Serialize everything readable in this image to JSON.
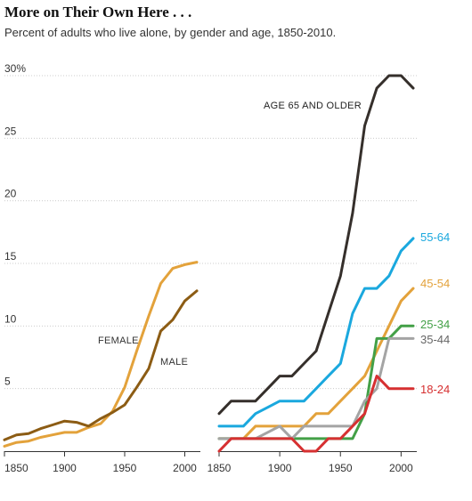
{
  "title": "More on Their Own Here . . .",
  "subtitle": "Percent of adults who live alone, by gender and age, 1850-2010.",
  "colors": {
    "female": "#e3a23b",
    "male": "#8c5c14",
    "age_65_plus": "#352f2b",
    "age_55_64": "#1aa8de",
    "age_45_54": "#e3a23b",
    "age_25_34": "#43a047",
    "age_35_44": "#a4a4a4",
    "age_18_24": "#d63031",
    "grid": "#cccccc",
    "axis": "#333333"
  },
  "chart_data": [
    {
      "type": "line",
      "xlim": [
        1850,
        2010
      ],
      "ylim": [
        0,
        30
      ],
      "x_ticks": [
        "1850",
        "1900",
        "1950",
        "2000"
      ],
      "y_ticks": [
        "5",
        "10",
        "15",
        "20",
        "25",
        "30%"
      ],
      "grid": true,
      "series": [
        {
          "name": "FEMALE",
          "x": [
            1850,
            1860,
            1870,
            1880,
            1890,
            1900,
            1910,
            1920,
            1930,
            1940,
            1950,
            1960,
            1970,
            1980,
            1990,
            2000,
            2010
          ],
          "values": [
            0.4,
            0.7,
            0.8,
            1.1,
            1.3,
            1.5,
            1.5,
            1.9,
            2.2,
            3.2,
            5.1,
            8.0,
            10.8,
            13.4,
            14.6,
            14.9,
            15.1
          ]
        },
        {
          "name": "MALE",
          "x": [
            1850,
            1860,
            1870,
            1880,
            1890,
            1900,
            1910,
            1920,
            1930,
            1940,
            1950,
            1960,
            1970,
            1980,
            1990,
            2000,
            2010
          ],
          "values": [
            0.9,
            1.3,
            1.4,
            1.8,
            2.1,
            2.4,
            2.3,
            2.0,
            2.6,
            3.1,
            3.7,
            5.1,
            6.6,
            9.6,
            10.5,
            12.0,
            12.8
          ]
        }
      ]
    },
    {
      "type": "line",
      "xlim": [
        1850,
        2010
      ],
      "ylim": [
        0,
        30
      ],
      "x_ticks": [
        "1850",
        "1900",
        "1950",
        "2000"
      ],
      "grid": true,
      "series": [
        {
          "name": "AGE 65 AND OLDER",
          "x": [
            1850,
            1860,
            1870,
            1880,
            1890,
            1900,
            1910,
            1920,
            1930,
            1940,
            1950,
            1960,
            1970,
            1980,
            1990,
            2000,
            2010
          ],
          "values": [
            3.0,
            4.0,
            4.0,
            4.0,
            5.0,
            6.0,
            6.0,
            7.0,
            8.0,
            11.0,
            14.0,
            19.0,
            26.0,
            29.0,
            30.0,
            30.0,
            29.0
          ]
        },
        {
          "name": "55-64",
          "x": [
            1850,
            1860,
            1870,
            1880,
            1890,
            1900,
            1910,
            1920,
            1930,
            1940,
            1950,
            1960,
            1970,
            1980,
            1990,
            2000,
            2010
          ],
          "values": [
            2.0,
            2.0,
            2.0,
            3.0,
            3.5,
            4.0,
            4.0,
            4.0,
            5.0,
            6.0,
            7.0,
            11.0,
            13.0,
            13.0,
            14.0,
            16.0,
            17.0
          ]
        },
        {
          "name": "45-54",
          "x": [
            1850,
            1860,
            1870,
            1880,
            1890,
            1900,
            1910,
            1920,
            1930,
            1940,
            1950,
            1960,
            1970,
            1980,
            1990,
            2000,
            2010
          ],
          "values": [
            1.0,
            1.0,
            1.0,
            2.0,
            2.0,
            2.0,
            2.0,
            2.0,
            3.0,
            3.0,
            4.0,
            5.0,
            6.0,
            8.0,
            10.0,
            12.0,
            13.0
          ]
        },
        {
          "name": "25-34",
          "x": [
            1850,
            1860,
            1870,
            1880,
            1890,
            1900,
            1910,
            1920,
            1930,
            1940,
            1950,
            1960,
            1970,
            1980,
            1990,
            2000,
            2010
          ],
          "values": [
            1.0,
            1.0,
            1.0,
            1.0,
            1.0,
            1.0,
            1.0,
            1.0,
            1.0,
            1.0,
            1.0,
            1.0,
            3.0,
            9.0,
            9.0,
            10.0,
            10.0
          ]
        },
        {
          "name": "35-44",
          "x": [
            1850,
            1860,
            1870,
            1880,
            1890,
            1900,
            1910,
            1920,
            1930,
            1940,
            1950,
            1960,
            1970,
            1980,
            1990,
            2000,
            2010
          ],
          "values": [
            1.0,
            1.0,
            1.0,
            1.0,
            1.5,
            2.0,
            1.0,
            2.0,
            2.0,
            2.0,
            2.0,
            2.0,
            4.0,
            5.0,
            9.0,
            9.0,
            9.0
          ]
        },
        {
          "name": "18-24",
          "x": [
            1850,
            1860,
            1870,
            1880,
            1890,
            1900,
            1910,
            1920,
            1930,
            1940,
            1950,
            1960,
            1970,
            1980,
            1990,
            2000,
            2010
          ],
          "values": [
            0.0,
            1.0,
            1.0,
            1.0,
            1.0,
            1.0,
            1.0,
            0.0,
            0.0,
            1.0,
            1.0,
            2.0,
            3.0,
            6.0,
            5.0,
            5.0,
            5.0
          ]
        }
      ]
    }
  ]
}
